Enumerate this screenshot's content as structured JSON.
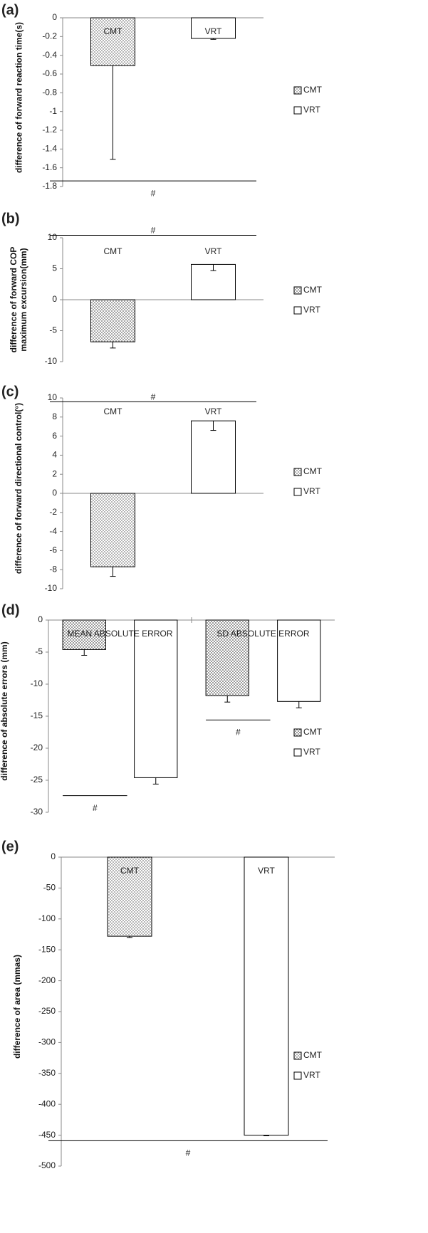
{
  "chart_data": [
    {
      "type": "bar",
      "panel_label": "(a)",
      "ylabel": "difference of forward reaction time(s)",
      "categories": [
        null
      ],
      "series": [
        {
          "name": "CMT",
          "color": "#808080",
          "pattern": "dots",
          "values": [
            -0.51
          ],
          "errors": [
            1.0
          ]
        },
        {
          "name": "VRT",
          "color": "#ffffff",
          "values": [
            -0.22
          ],
          "errors": [
            0.01
          ]
        }
      ],
      "ylim": [
        -1.8,
        0
      ],
      "yticks": [
        0,
        -0.2,
        -0.4,
        -0.6,
        -0.8,
        -1,
        -1.2,
        -1.4,
        -1.6,
        -1.8
      ],
      "annotations": [
        {
          "text": "#",
          "y": -1.74
        }
      ]
    },
    {
      "type": "bar",
      "panel_label": "(b)",
      "ylabel": "difference of forward COP maximum excursion(mm)",
      "categories": [
        null
      ],
      "series": [
        {
          "name": "CMT",
          "color": "#666666",
          "pattern": "dots",
          "values": [
            -6.8
          ],
          "errors": [
            1.0
          ]
        },
        {
          "name": "VRT",
          "color": "#ffffff",
          "values": [
            5.7
          ],
          "errors": [
            1.0
          ]
        }
      ],
      "ylim": [
        -10,
        10
      ],
      "yticks": [
        10,
        5,
        0,
        -5,
        -10
      ],
      "annotations": [
        {
          "text": "#",
          "y": 10.4
        }
      ]
    },
    {
      "type": "bar",
      "panel_label": "(c)",
      "ylabel": "difference of forward directional control(°)",
      "categories": [
        null
      ],
      "series": [
        {
          "name": "CMT",
          "color": "#808080",
          "pattern": "dots",
          "values": [
            -7.7
          ],
          "errors": [
            1.0
          ]
        },
        {
          "name": "VRT",
          "color": "#ffffff",
          "values": [
            7.6
          ],
          "errors": [
            1.0
          ]
        }
      ],
      "ylim": [
        -10,
        10
      ],
      "yticks": [
        10,
        8,
        6,
        4,
        2,
        0,
        -2,
        -4,
        -6,
        -8,
        -10
      ],
      "annotations": [
        {
          "text": "#",
          "y": 9.6
        }
      ]
    },
    {
      "type": "bar",
      "panel_label": "(d)",
      "ylabel": "difference of absolute errors (mm)",
      "categories": [
        "MEAN ABSOLUTE ERROR",
        "SD ABSOLUTE ERROR"
      ],
      "series": [
        {
          "name": "CMT",
          "color": "#555555",
          "pattern": "dots",
          "values": [
            -4.6,
            -11.8
          ],
          "errors": [
            0.9,
            1.0
          ]
        },
        {
          "name": "VRT",
          "color": "#ffffff",
          "values": [
            -24.6,
            -12.7
          ],
          "errors": [
            1.0,
            1.0
          ]
        }
      ],
      "ylim": [
        -30,
        0
      ],
      "yticks": [
        0,
        -5,
        -10,
        -15,
        -20,
        -25,
        -30
      ],
      "annotations": [
        {
          "text": "#",
          "y": -27.4
        },
        {
          "text": "#",
          "y": -15.6
        }
      ]
    },
    {
      "type": "bar",
      "panel_label": "(e)",
      "ylabel": "difference of area (mmas)",
      "categories": [
        null
      ],
      "series": [
        {
          "name": "CMT",
          "color": "#808080",
          "pattern": "dots",
          "values": [
            -128
          ],
          "errors": [
            2
          ]
        },
        {
          "name": "VRT",
          "color": "#ffffff",
          "values": [
            -450
          ],
          "errors": [
            1
          ]
        }
      ],
      "ylim": [
        -500,
        0
      ],
      "yticks": [
        0,
        -50,
        -100,
        -150,
        -200,
        -250,
        -300,
        -350,
        -400,
        -450,
        -500
      ],
      "annotations": [
        {
          "text": "#",
          "y": -459
        }
      ]
    }
  ]
}
